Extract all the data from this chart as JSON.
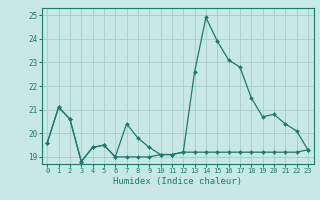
{
  "xlabel": "Humidex (Indice chaleur)",
  "x": [
    0,
    1,
    2,
    3,
    4,
    5,
    6,
    7,
    8,
    9,
    10,
    11,
    12,
    13,
    14,
    15,
    16,
    17,
    18,
    19,
    20,
    21,
    22,
    23
  ],
  "line1_y": [
    19.6,
    21.1,
    20.6,
    18.8,
    19.4,
    19.5,
    19.0,
    20.4,
    19.8,
    19.4,
    19.1,
    19.1,
    19.2,
    22.6,
    24.9,
    23.9,
    23.1,
    22.8,
    21.5,
    20.7,
    20.8,
    20.4,
    20.1,
    19.3
  ],
  "line2_y": [
    19.6,
    21.1,
    20.6,
    18.8,
    19.4,
    19.5,
    19.0,
    19.0,
    19.0,
    19.0,
    19.1,
    19.1,
    19.2,
    19.2,
    19.2,
    19.2,
    19.2,
    19.2,
    19.2,
    19.2,
    19.2,
    19.2,
    19.2,
    19.3
  ],
  "line_color": "#1a7a6e",
  "bg_color": "#c8e8e5",
  "grid_color": "#a8ccc9",
  "ylim": [
    18.7,
    25.3
  ],
  "yticks": [
    19,
    20,
    21,
    22,
    23,
    24,
    25
  ],
  "xlim": [
    -0.5,
    23.5
  ]
}
